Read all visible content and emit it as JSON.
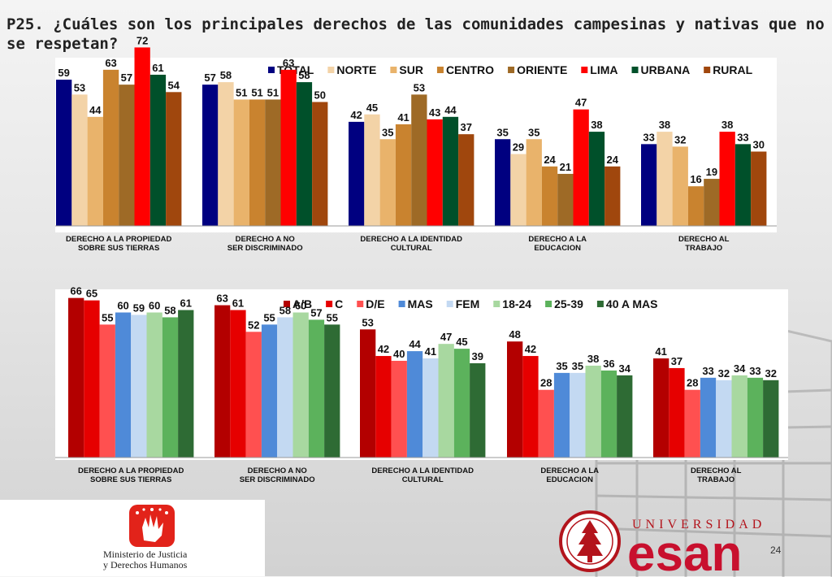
{
  "title": "P25. ¿Cuáles son los principales derechos de las comunidades campesinas y nativas que no se respetan?",
  "page_number": "24",
  "logos": {
    "ministerio_line1": "Ministerio de Justicia",
    "ministerio_line2": "y Derechos Humanos",
    "university_word": "UNIVERSIDAD",
    "university_name": "esan"
  },
  "chart_data": [
    {
      "type": "bar",
      "title": "",
      "xlabel": "",
      "ylabel": "",
      "ylim": [
        0,
        80
      ],
      "grid": false,
      "legend": "top",
      "categories": [
        "DERECHO A LA PROPIEDAD\nSOBRE SUS TIERRAS",
        "DERECHO A NO\nSER DISCRIMINADO",
        "DERECHO A LA IDENTIDAD\nCULTURAL",
        "DERECHO A LA\nEDUCACION",
        "DERECHO AL\nTRABAJO"
      ],
      "series": [
        {
          "name": "TOTAL",
          "color": "#000080",
          "values": [
            59,
            57,
            42,
            35,
            33
          ]
        },
        {
          "name": "NORTE",
          "color": "#f3d3a7",
          "values": [
            53,
            58,
            45,
            29,
            38
          ]
        },
        {
          "name": "SUR",
          "color": "#e9b36b",
          "values": [
            44,
            51,
            35,
            35,
            32
          ]
        },
        {
          "name": "CENTRO",
          "color": "#c9832f",
          "values": [
            63,
            51,
            41,
            24,
            16
          ]
        },
        {
          "name": "ORIENTE",
          "color": "#9e6a26",
          "values": [
            57,
            51,
            53,
            21,
            19
          ]
        },
        {
          "name": "LIMA",
          "color": "#ff0000",
          "values": [
            72,
            63,
            43,
            47,
            38
          ]
        },
        {
          "name": "URBANA",
          "color": "#00502a",
          "values": [
            61,
            58,
            44,
            38,
            33
          ]
        },
        {
          "name": "RURAL",
          "color": "#a0470d",
          "values": [
            54,
            50,
            37,
            24,
            30
          ]
        }
      ]
    },
    {
      "type": "bar",
      "title": "",
      "xlabel": "",
      "ylabel": "",
      "ylim": [
        0,
        80
      ],
      "grid": false,
      "legend": "top",
      "categories": [
        "DERECHO A LA PROPIEDAD\nSOBRE SUS TIERRAS",
        "DERECHO A NO\nSER DISCRIMINADO",
        "DERECHO A LA IDENTIDAD\nCULTURAL",
        "DERECHO A LA\nEDUCACION",
        "DERECHO AL\nTRABAJO"
      ],
      "series": [
        {
          "name": "A/B",
          "color": "#b30000",
          "values": [
            66,
            63,
            53,
            48,
            41
          ]
        },
        {
          "name": "C",
          "color": "#e60000",
          "values": [
            65,
            61,
            42,
            42,
            37
          ]
        },
        {
          "name": "D/E",
          "color": "#ff5050",
          "values": [
            55,
            52,
            40,
            28,
            28
          ]
        },
        {
          "name": "MAS",
          "color": "#4f8ad8",
          "values": [
            60,
            55,
            44,
            35,
            33
          ]
        },
        {
          "name": "FEM",
          "color": "#c3d9f2",
          "values": [
            59,
            58,
            41,
            35,
            32
          ]
        },
        {
          "name": "18-24",
          "color": "#a8d8a0",
          "values": [
            60,
            60,
            47,
            38,
            34
          ]
        },
        {
          "name": "25-39",
          "color": "#5cb25c",
          "values": [
            58,
            57,
            45,
            36,
            33
          ]
        },
        {
          "name": "40 A MAS",
          "color": "#2e6b34",
          "values": [
            61,
            55,
            39,
            34,
            32
          ]
        }
      ]
    }
  ]
}
